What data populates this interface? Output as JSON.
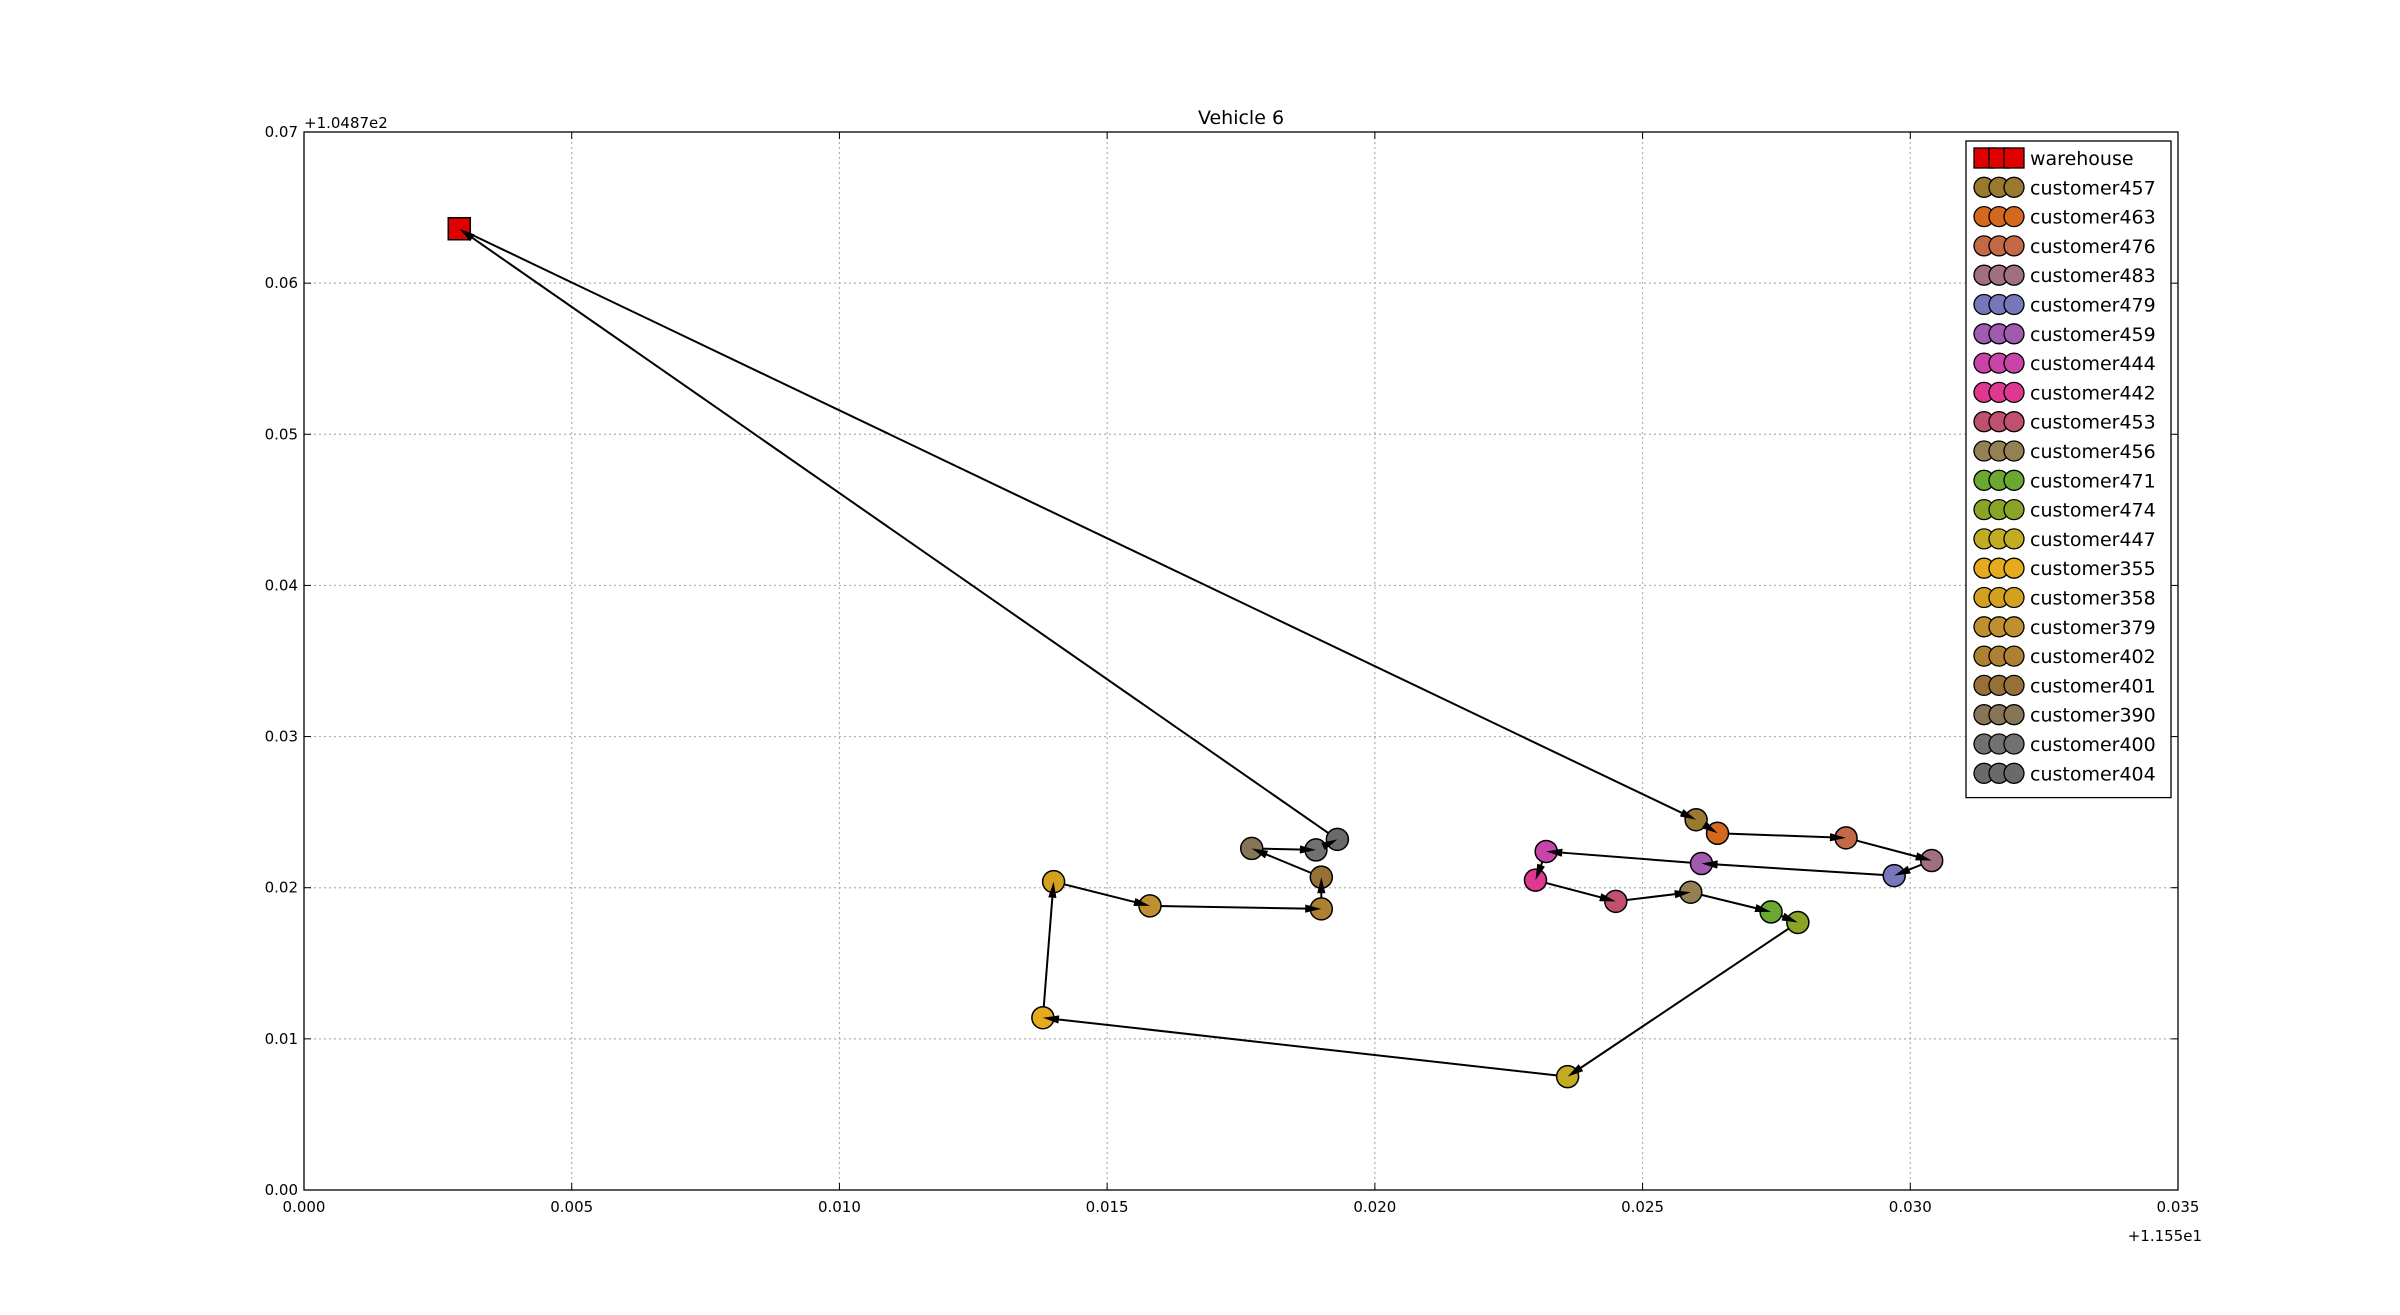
{
  "chart_data": {
    "type": "scatter",
    "title": "Vehicle 6",
    "x_offset_label": "+1.155e1",
    "y_offset_label": "+1.0487e2",
    "xlim": [
      0.0,
      0.035
    ],
    "ylim": [
      0.0,
      0.07
    ],
    "x_ticks": [
      "0.000",
      "0.005",
      "0.010",
      "0.015",
      "0.020",
      "0.025",
      "0.030",
      "0.035"
    ],
    "y_ticks": [
      "0.00",
      "0.01",
      "0.02",
      "0.03",
      "0.04",
      "0.05",
      "0.06",
      "0.07"
    ],
    "grid": true,
    "legend_position": "top-right",
    "route_color": "#000000",
    "points": [
      {
        "name": "warehouse",
        "x": 0.0029,
        "y": 0.0636,
        "marker": "square",
        "color": "#e00000"
      },
      {
        "name": "customer457",
        "x": 0.026,
        "y": 0.0245,
        "marker": "circle",
        "color": "#9a7a2f"
      },
      {
        "name": "customer463",
        "x": 0.0264,
        "y": 0.0236,
        "marker": "circle",
        "color": "#d2691e"
      },
      {
        "name": "customer476",
        "x": 0.0288,
        "y": 0.0233,
        "marker": "circle",
        "color": "#c26a45"
      },
      {
        "name": "customer483",
        "x": 0.0304,
        "y": 0.0218,
        "marker": "circle",
        "color": "#a07080"
      },
      {
        "name": "customer479",
        "x": 0.0297,
        "y": 0.0208,
        "marker": "circle",
        "color": "#7777bb"
      },
      {
        "name": "customer459",
        "x": 0.0261,
        "y": 0.0216,
        "marker": "circle",
        "color": "#a05ab0"
      },
      {
        "name": "customer444",
        "x": 0.0232,
        "y": 0.0224,
        "marker": "circle",
        "color": "#c844a8"
      },
      {
        "name": "customer442",
        "x": 0.023,
        "y": 0.0205,
        "marker": "circle",
        "color": "#e03790"
      },
      {
        "name": "customer453",
        "x": 0.0245,
        "y": 0.0191,
        "marker": "circle",
        "color": "#c05070"
      },
      {
        "name": "customer456",
        "x": 0.0259,
        "y": 0.0197,
        "marker": "circle",
        "color": "#948052"
      },
      {
        "name": "customer471",
        "x": 0.0274,
        "y": 0.0184,
        "marker": "circle",
        "color": "#6aa832"
      },
      {
        "name": "customer474",
        "x": 0.0279,
        "y": 0.0177,
        "marker": "circle",
        "color": "#8aa428"
      },
      {
        "name": "customer447",
        "x": 0.0236,
        "y": 0.0075,
        "marker": "circle",
        "color": "#c2ac22"
      },
      {
        "name": "customer355",
        "x": 0.0138,
        "y": 0.0114,
        "marker": "circle",
        "color": "#e6aa1e"
      },
      {
        "name": "customer358",
        "x": 0.014,
        "y": 0.0204,
        "marker": "circle",
        "color": "#d4a020"
      },
      {
        "name": "customer379",
        "x": 0.0158,
        "y": 0.0188,
        "marker": "circle",
        "color": "#bf9030"
      },
      {
        "name": "customer402",
        "x": 0.019,
        "y": 0.0186,
        "marker": "circle",
        "color": "#ad8032"
      },
      {
        "name": "customer401",
        "x": 0.019,
        "y": 0.0207,
        "marker": "circle",
        "color": "#977038"
      },
      {
        "name": "customer390",
        "x": 0.0177,
        "y": 0.0226,
        "marker": "circle",
        "color": "#877558"
      },
      {
        "name": "customer400",
        "x": 0.0189,
        "y": 0.0225,
        "marker": "circle",
        "color": "#727070"
      },
      {
        "name": "customer404",
        "x": 0.0193,
        "y": 0.0232,
        "marker": "circle",
        "color": "#6a6a6a"
      }
    ],
    "route": [
      "warehouse",
      "customer457",
      "customer463",
      "customer476",
      "customer483",
      "customer479",
      "customer459",
      "customer444",
      "customer442",
      "customer453",
      "customer456",
      "customer471",
      "customer474",
      "customer447",
      "customer355",
      "customer358",
      "customer379",
      "customer402",
      "customer401",
      "customer390",
      "customer400",
      "customer404",
      "warehouse"
    ]
  }
}
